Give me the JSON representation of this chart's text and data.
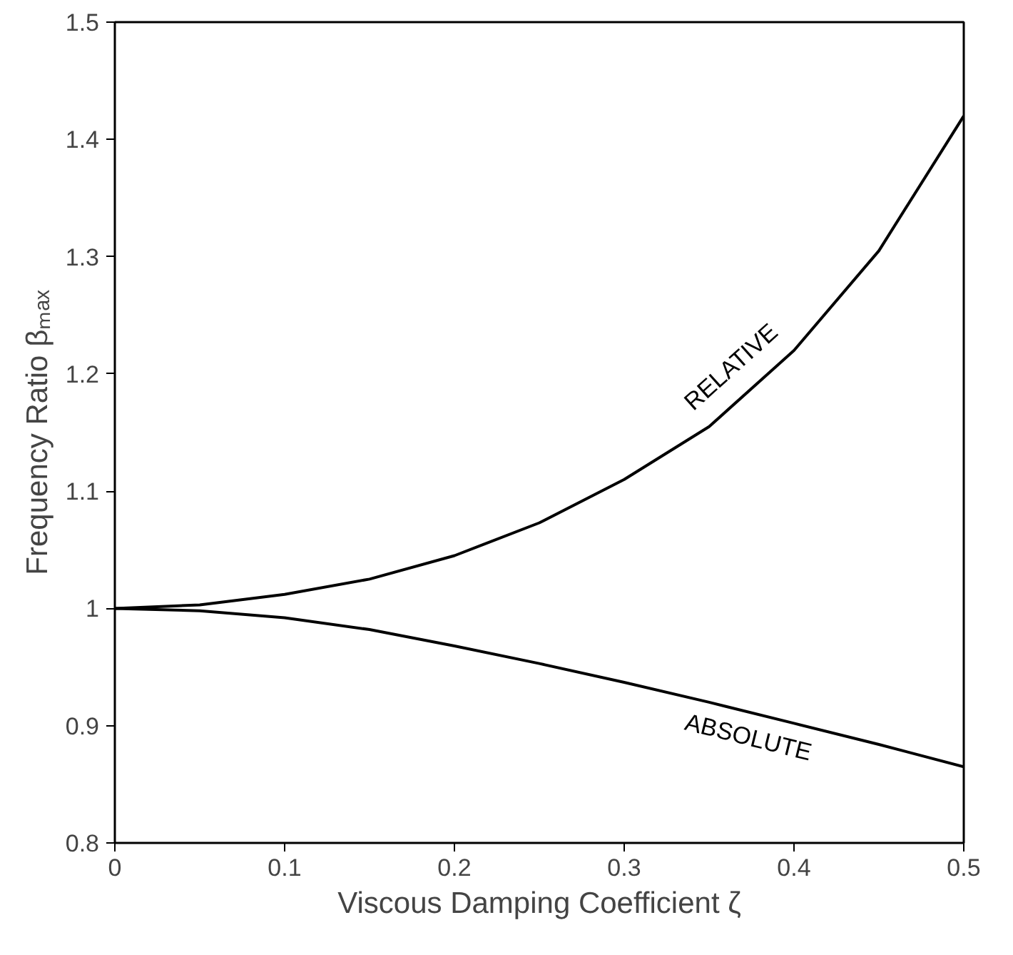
{
  "chart_data": {
    "type": "line",
    "xlabel": "Viscous Damping Coefficient ζ",
    "ylabel": "Frequency Ratio βₘₐₓ",
    "x": [
      0,
      0.05,
      0.1,
      0.15,
      0.2,
      0.25,
      0.3,
      0.35,
      0.4,
      0.45,
      0.5
    ],
    "series": [
      {
        "name": "RELATIVE",
        "color": "#000000",
        "values": [
          1,
          1.003,
          1.012,
          1.025,
          1.045,
          1.073,
          1.11,
          1.155,
          1.22,
          1.305,
          1.42
        ]
      },
      {
        "name": "ABSOLUTE",
        "color": "#000000",
        "values": [
          1,
          0.998,
          0.992,
          0.982,
          0.968,
          0.953,
          0.937,
          0.92,
          0.902,
          0.884,
          0.865
        ]
      }
    ],
    "xlim": [
      0,
      0.5
    ],
    "ylim": [
      0.8,
      1.5
    ],
    "xticks": [
      0,
      0.1,
      0.2,
      0.3,
      0.4,
      0.5
    ],
    "yticks": [
      0.8,
      0.9,
      1,
      1.1,
      1.2,
      1.3,
      1.4,
      1.5
    ],
    "grid": false,
    "legend": false,
    "marker": "none",
    "line_style": "solid"
  }
}
